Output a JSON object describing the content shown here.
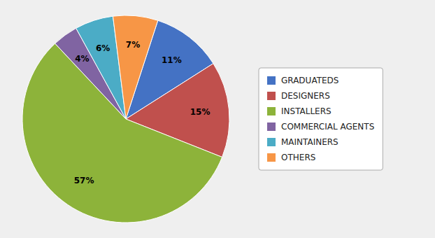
{
  "chart_data": {
    "type": "pie",
    "categories": [
      "GRADUATEDS",
      "DESIGNERS",
      "INSTALLERS",
      "COMMERCIAL AGENTS",
      "MAINTAINERS",
      "OTHERS"
    ],
    "values": [
      11,
      15,
      57,
      4,
      6,
      7
    ],
    "value_labels": [
      "11%",
      "15%",
      "57%",
      "4%",
      "6%",
      "7%"
    ],
    "colors": [
      "#4472C4",
      "#C0504D",
      "#8DB33A",
      "#8064A2",
      "#4BACC6",
      "#F79646"
    ],
    "data_labels": true,
    "legend": "right"
  }
}
